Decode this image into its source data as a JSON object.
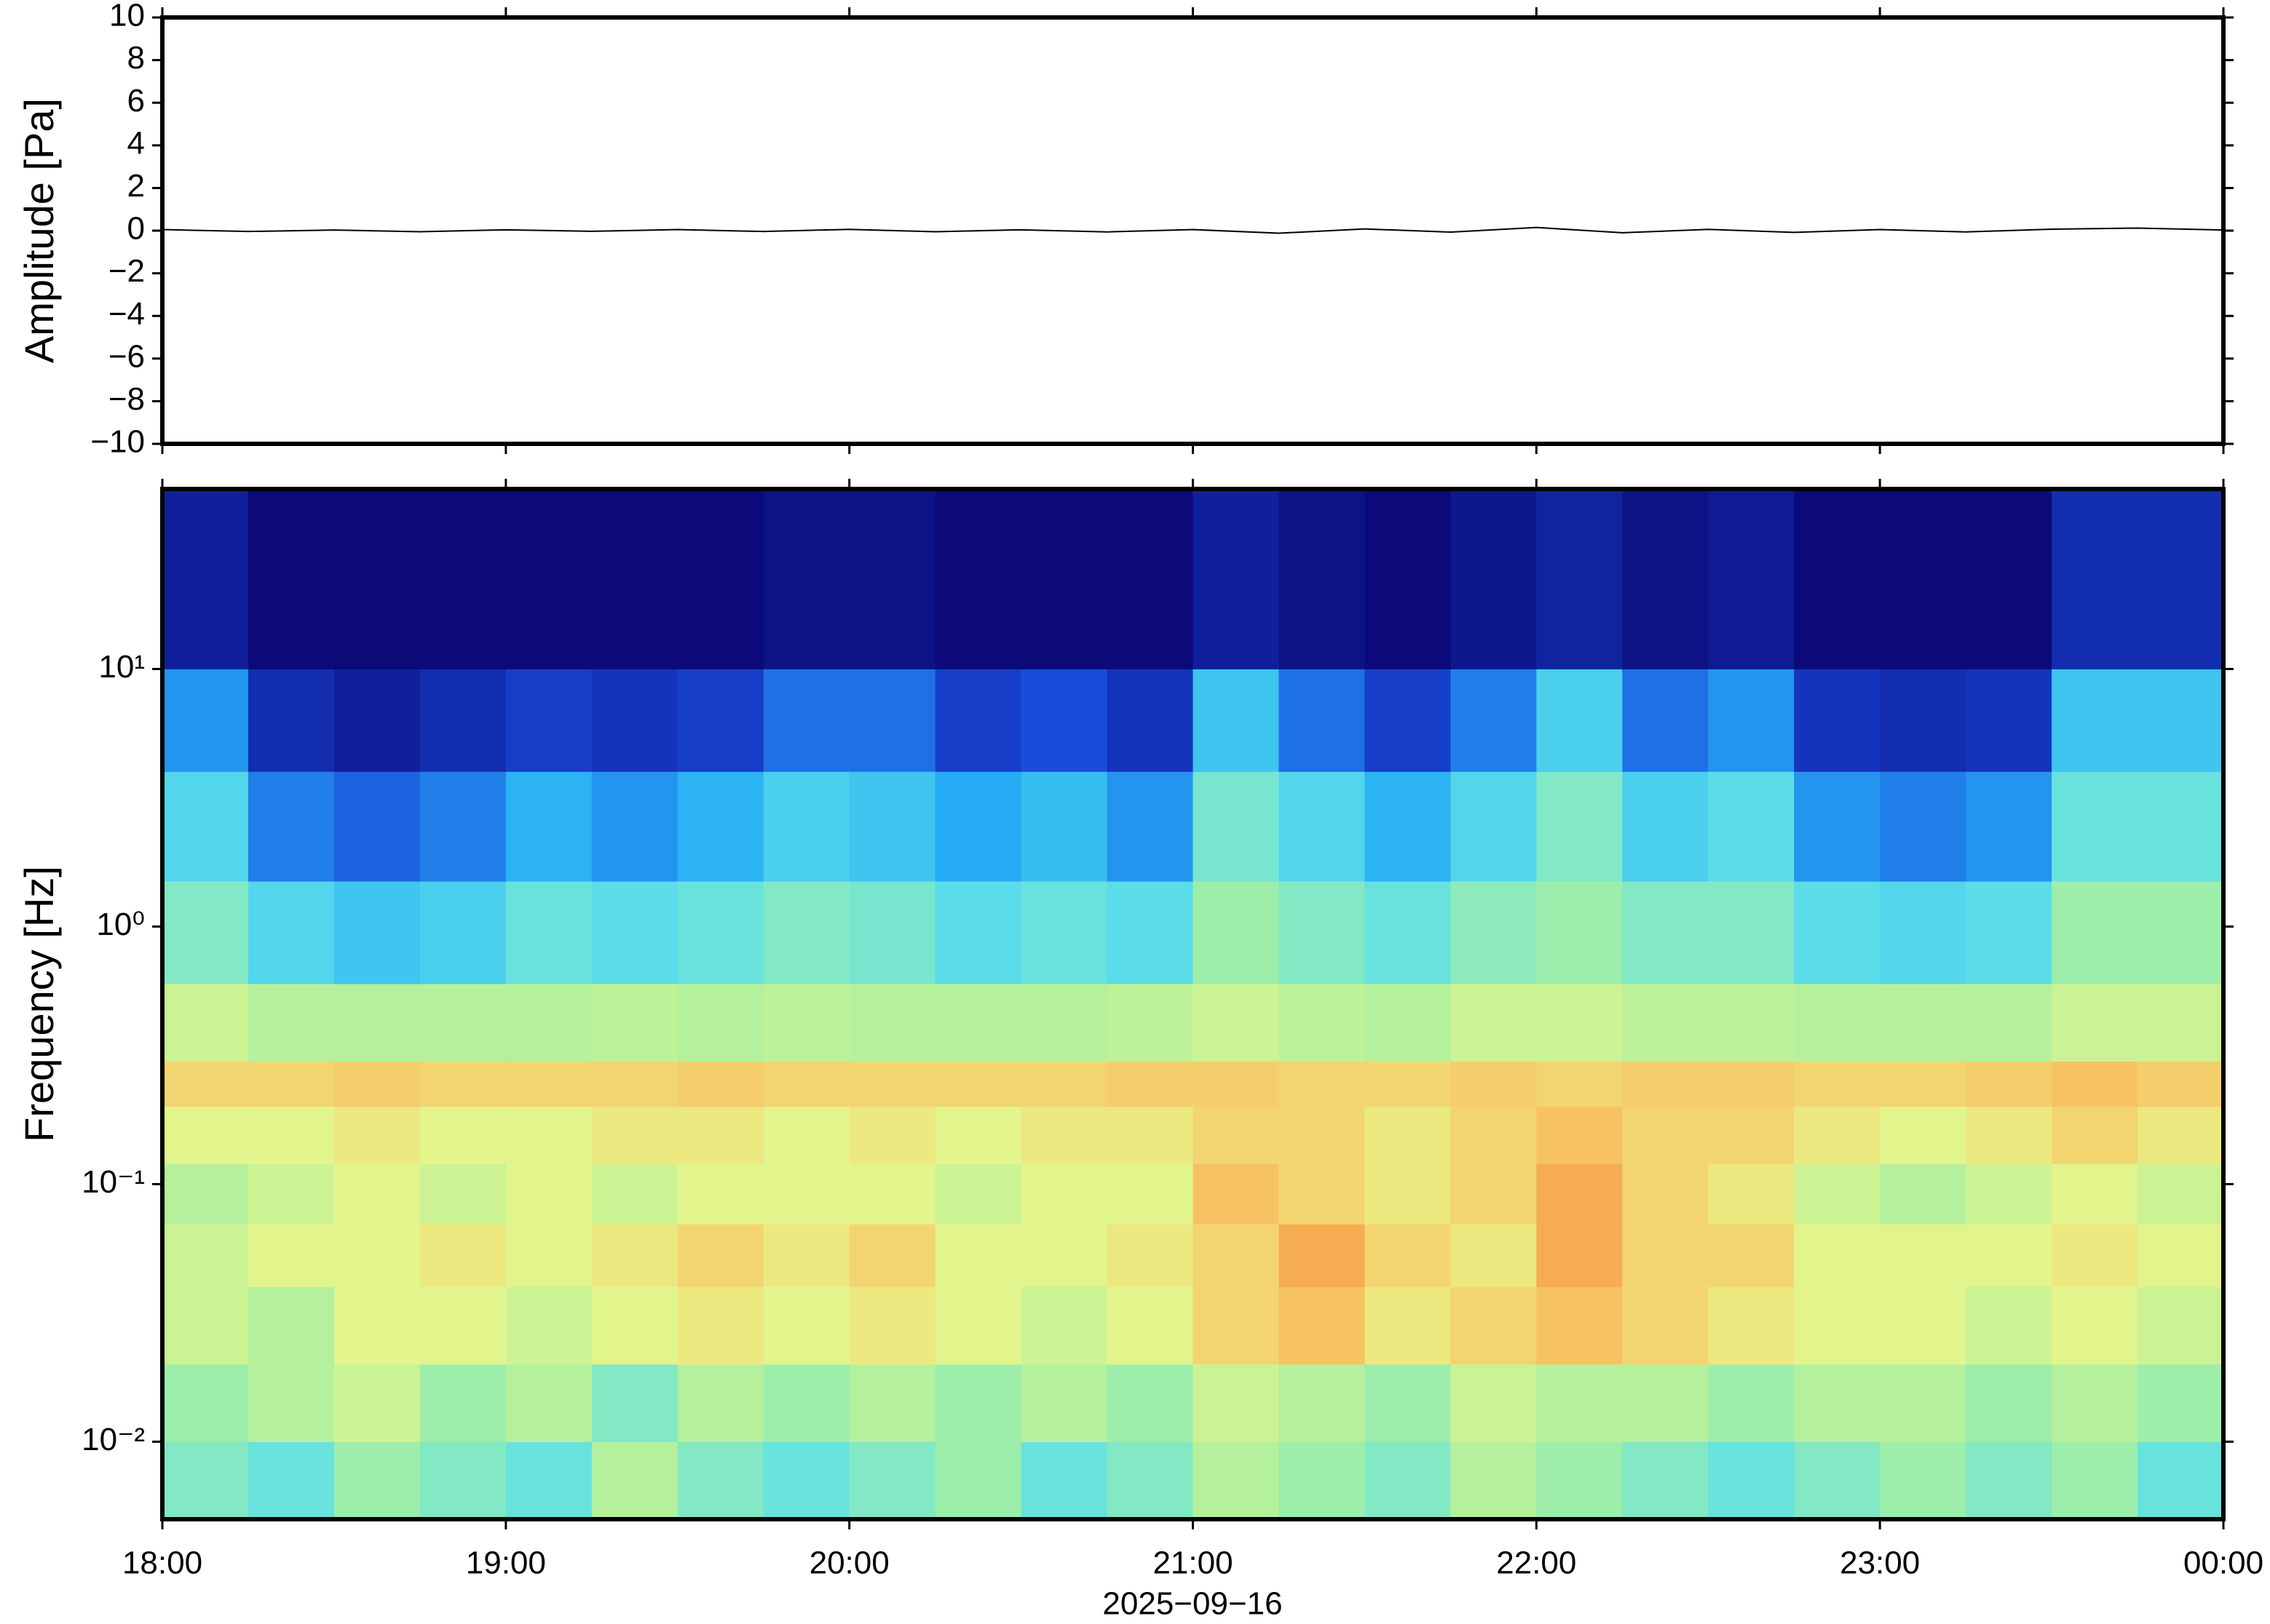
{
  "chart_data": [
    {
      "type": "line",
      "ylabel": "Amplitude [Pa]",
      "xlim": [
        18,
        24
      ],
      "ylim": [
        -10,
        10
      ],
      "yticks": [
        {
          "value": 10,
          "label": "10"
        },
        {
          "value": 8,
          "label": "8"
        },
        {
          "value": 6,
          "label": "6"
        },
        {
          "value": 4,
          "label": "4"
        },
        {
          "value": 2,
          "label": "2"
        },
        {
          "value": 0,
          "label": "0"
        },
        {
          "value": -2,
          "label": "−2"
        },
        {
          "value": -4,
          "label": "−4"
        },
        {
          "value": -6,
          "label": "−6"
        },
        {
          "value": -8,
          "label": "−8"
        },
        {
          "value": -10,
          "label": "−10"
        }
      ],
      "x": [
        18,
        18.25,
        18.5,
        18.75,
        19,
        19.25,
        19.5,
        19.75,
        20,
        20.25,
        20.5,
        20.75,
        21,
        21.25,
        21.5,
        21.75,
        22,
        22.25,
        22.5,
        22.75,
        23,
        23.25,
        23.5,
        23.75,
        24
      ],
      "color": "#000000",
      "values": [
        0.05,
        -0.04,
        0.03,
        -0.05,
        0.04,
        -0.03,
        0.05,
        -0.04,
        0.06,
        -0.05,
        0.04,
        -0.06,
        0.05,
        -0.12,
        0.08,
        -0.07,
        0.15,
        -0.1,
        0.06,
        -0.08,
        0.05,
        -0.06,
        0.07,
        0.12,
        0.03
      ]
    },
    {
      "type": "heatmap",
      "ylabel": "Frequency [Hz]",
      "xlabel": "2025−09−16",
      "xlim": [
        18,
        24
      ],
      "ylim": [
        0.005,
        50
      ],
      "log_y": true,
      "xticks": [
        {
          "value": 18,
          "label": "18:00"
        },
        {
          "value": 19,
          "label": "19:00"
        },
        {
          "value": 20,
          "label": "20:00"
        },
        {
          "value": 21,
          "label": "21:00"
        },
        {
          "value": 22,
          "label": "22:00"
        },
        {
          "value": 23,
          "label": "23:00"
        },
        {
          "value": 24,
          "label": "00:00"
        }
      ],
      "yticks": [
        {
          "value": 10,
          "label": "10¹"
        },
        {
          "value": 1,
          "label": "10⁰"
        },
        {
          "value": 0.1,
          "label": "10⁻¹"
        },
        {
          "value": 0.01,
          "label": "10⁻²"
        }
      ],
      "xbins": [
        18,
        18.25,
        18.5,
        18.75,
        19,
        19.25,
        19.5,
        19.75,
        20,
        20.25,
        20.5,
        20.75,
        21,
        21.25,
        21.5,
        21.75,
        22,
        22.25,
        22.5,
        22.75,
        23,
        23.25,
        23.5,
        23.75,
        24
      ],
      "ybins": [
        0.005,
        0.01,
        0.02,
        0.04,
        0.07,
        0.12,
        0.2,
        0.3,
        0.6,
        1.5,
        4,
        10,
        50
      ],
      "colorscale": [
        "#0b0a78",
        "#1848d8",
        "#26aef5",
        "#5de0e8",
        "#a8f0a0",
        "#e8f58a",
        "#f8c060",
        "#f08030"
      ],
      "values": [
        [
          0.5,
          0.45,
          0.55,
          0.5,
          0.45,
          0.6,
          0.5,
          0.45,
          0.5,
          0.55,
          0.45,
          0.5,
          0.6,
          0.55,
          0.5,
          0.6,
          0.55,
          0.5,
          0.45,
          0.5,
          0.55,
          0.5,
          0.55,
          0.45
        ],
        [
          0.55,
          0.6,
          0.65,
          0.55,
          0.6,
          0.5,
          0.6,
          0.55,
          0.6,
          0.55,
          0.6,
          0.55,
          0.65,
          0.6,
          0.55,
          0.65,
          0.6,
          0.6,
          0.55,
          0.6,
          0.6,
          0.55,
          0.6,
          0.55
        ],
        [
          0.65,
          0.6,
          0.7,
          0.7,
          0.65,
          0.7,
          0.75,
          0.7,
          0.75,
          0.7,
          0.65,
          0.7,
          0.8,
          0.85,
          0.75,
          0.8,
          0.85,
          0.8,
          0.75,
          0.7,
          0.7,
          0.65,
          0.7,
          0.65
        ],
        [
          0.65,
          0.7,
          0.7,
          0.75,
          0.7,
          0.75,
          0.8,
          0.75,
          0.8,
          0.7,
          0.7,
          0.75,
          0.8,
          0.9,
          0.8,
          0.75,
          0.9,
          0.8,
          0.8,
          0.7,
          0.7,
          0.7,
          0.75,
          0.7
        ],
        [
          0.6,
          0.65,
          0.7,
          0.65,
          0.7,
          0.65,
          0.7,
          0.7,
          0.7,
          0.65,
          0.7,
          0.7,
          0.85,
          0.8,
          0.75,
          0.8,
          0.9,
          0.8,
          0.75,
          0.65,
          0.6,
          0.65,
          0.7,
          0.65
        ],
        [
          0.7,
          0.7,
          0.75,
          0.7,
          0.7,
          0.75,
          0.75,
          0.7,
          0.75,
          0.7,
          0.75,
          0.75,
          0.8,
          0.8,
          0.75,
          0.8,
          0.85,
          0.8,
          0.8,
          0.75,
          0.7,
          0.75,
          0.8,
          0.75
        ],
        [
          0.8,
          0.8,
          0.82,
          0.8,
          0.8,
          0.8,
          0.82,
          0.8,
          0.8,
          0.8,
          0.8,
          0.82,
          0.82,
          0.8,
          0.8,
          0.82,
          0.8,
          0.82,
          0.82,
          0.8,
          0.8,
          0.82,
          0.85,
          0.82
        ],
        [
          0.65,
          0.6,
          0.6,
          0.6,
          0.6,
          0.62,
          0.6,
          0.62,
          0.6,
          0.6,
          0.6,
          0.62,
          0.65,
          0.62,
          0.6,
          0.65,
          0.65,
          0.62,
          0.62,
          0.6,
          0.6,
          0.6,
          0.65,
          0.65
        ],
        [
          0.5,
          0.4,
          0.35,
          0.38,
          0.45,
          0.42,
          0.45,
          0.5,
          0.48,
          0.42,
          0.45,
          0.42,
          0.55,
          0.5,
          0.45,
          0.52,
          0.55,
          0.5,
          0.5,
          0.42,
          0.4,
          0.42,
          0.55,
          0.55
        ],
        [
          0.4,
          0.22,
          0.18,
          0.22,
          0.3,
          0.25,
          0.3,
          0.38,
          0.35,
          0.28,
          0.33,
          0.25,
          0.48,
          0.4,
          0.3,
          0.4,
          0.5,
          0.38,
          0.42,
          0.25,
          0.22,
          0.25,
          0.45,
          0.45
        ],
        [
          0.25,
          0.08,
          0.05,
          0.08,
          0.12,
          0.1,
          0.12,
          0.2,
          0.2,
          0.12,
          0.15,
          0.1,
          0.35,
          0.2,
          0.12,
          0.22,
          0.38,
          0.2,
          0.25,
          0.1,
          0.08,
          0.1,
          0.35,
          0.35
        ],
        [
          0.05,
          0,
          0,
          0,
          0,
          0,
          0,
          0.02,
          0.02,
          0,
          0,
          0,
          0.05,
          0.02,
          0,
          0.03,
          0.06,
          0.02,
          0.04,
          0,
          0,
          0,
          0.08,
          0.08
        ]
      ]
    }
  ]
}
